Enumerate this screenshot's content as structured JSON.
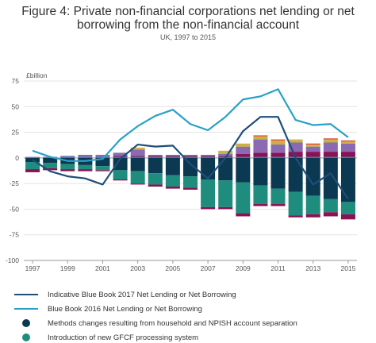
{
  "title": "Figure 4: Private non-financial corporations net lending or net borrowing from the non-financial account",
  "subtitle": "UK, 1997 to 2015",
  "chart_data": {
    "type": "bar",
    "stacked": true,
    "ylabel": "£billion",
    "ylim": [
      -100,
      75
    ],
    "yticks": [
      75,
      50,
      25,
      0,
      -25,
      -50,
      -75,
      -100
    ],
    "xticks": [
      "1997",
      "1999",
      "2001",
      "2003",
      "2005",
      "2007",
      "2009",
      "2011",
      "2013",
      "2015"
    ],
    "categories": [
      "1997",
      "1998",
      "1999",
      "2000",
      "2001",
      "2002",
      "2003",
      "2004",
      "2005",
      "2006",
      "2007",
      "2008",
      "2009",
      "2010",
      "2011",
      "2012",
      "2013",
      "2014",
      "2015"
    ],
    "grid": true,
    "legend_position": "bottom",
    "bar_series": [
      {
        "name": "Methods changes resulting from household and NPISH account separation",
        "color": "#0b3951",
        "values": [
          -4,
          -5,
          -6,
          -7,
          -8,
          -12,
          -13,
          -15,
          -17,
          -18,
          -21,
          -22,
          -24,
          -27,
          -30,
          -33,
          -37,
          -40,
          -43
        ]
      },
      {
        "name": "Introduction of new GFCF processing system",
        "color": "#1f8d7d",
        "values": [
          -7,
          -5,
          -5,
          -4,
          -4,
          -9,
          -12,
          -11,
          -11,
          -11,
          -27,
          -26,
          -30,
          -18,
          -15,
          -23,
          -18,
          -13,
          -12
        ]
      },
      {
        "color": "#8a1154",
        "values": [
          -3,
          -2,
          -2,
          -2,
          -1,
          -1,
          -1,
          -2,
          -2,
          -2,
          -2,
          -2,
          -3,
          -2,
          -2,
          -2,
          -3,
          -4,
          -5
        ]
      },
      {
        "color": "#2d7eb6",
        "values": [
          0,
          0,
          1,
          1,
          1,
          1,
          1,
          1,
          1,
          1,
          1,
          1,
          1,
          1,
          1,
          1,
          1,
          1,
          1
        ]
      },
      {
        "color": "#8a1154",
        "values": [
          0,
          0,
          0,
          0,
          0,
          1,
          1,
          1,
          1,
          1,
          1,
          1,
          3,
          4,
          4,
          5,
          5,
          5,
          5
        ]
      },
      {
        "color": "#8c69b3",
        "values": [
          1,
          1,
          1,
          2,
          2,
          3,
          6,
          1,
          1,
          1,
          1,
          2,
          7,
          13,
          8,
          9,
          5,
          9,
          8
        ]
      },
      {
        "color": "#b7b940",
        "values": [
          0,
          0,
          0,
          0,
          0,
          0,
          1,
          0,
          0,
          0,
          0,
          2,
          2,
          2,
          2,
          2,
          1,
          2,
          1
        ]
      },
      {
        "color": "#e8a33c",
        "values": [
          0,
          0,
          0,
          0,
          0,
          0,
          1,
          0,
          0,
          0,
          0,
          1,
          1,
          1,
          2,
          1,
          1,
          1,
          1
        ]
      },
      {
        "color": "#d4453b",
        "values": [
          0,
          0,
          0,
          0,
          0,
          0,
          0,
          0,
          0,
          0,
          0,
          0,
          0,
          1,
          1,
          0,
          1,
          1,
          1
        ]
      }
    ],
    "line_series": [
      {
        "name": "Indicative Blue Book 2017 Net Lending or Net Borrowing",
        "color": "#1f4e79",
        "values": [
          -2,
          -13,
          -18,
          -20,
          -26,
          -1,
          13,
          11,
          12,
          -6,
          -20,
          0,
          26,
          40,
          40,
          0,
          -26,
          -15,
          -40
        ]
      },
      {
        "name": "Blue Book 2016 Net Lending or Net Borrowing",
        "color": "#2aa1c8",
        "values": [
          7,
          1,
          -3,
          -3,
          -1,
          18,
          31,
          41,
          47,
          33,
          27,
          40,
          57,
          60,
          67,
          37,
          32,
          33,
          20
        ]
      }
    ]
  },
  "legend": [
    {
      "label": "Indicative Blue Book 2017 Net Lending or Net Borrowing",
      "color": "#1f4e79",
      "kind": "line"
    },
    {
      "label": "Blue Book 2016 Net Lending or Net Borrowing",
      "color": "#2aa1c8",
      "kind": "line"
    },
    {
      "label": "Methods changes resulting from household and NPISH account separation",
      "color": "#0b3951",
      "kind": "dot"
    },
    {
      "label": "Introduction of new GFCF processing system",
      "color": "#1f8d7d",
      "kind": "dot"
    }
  ]
}
